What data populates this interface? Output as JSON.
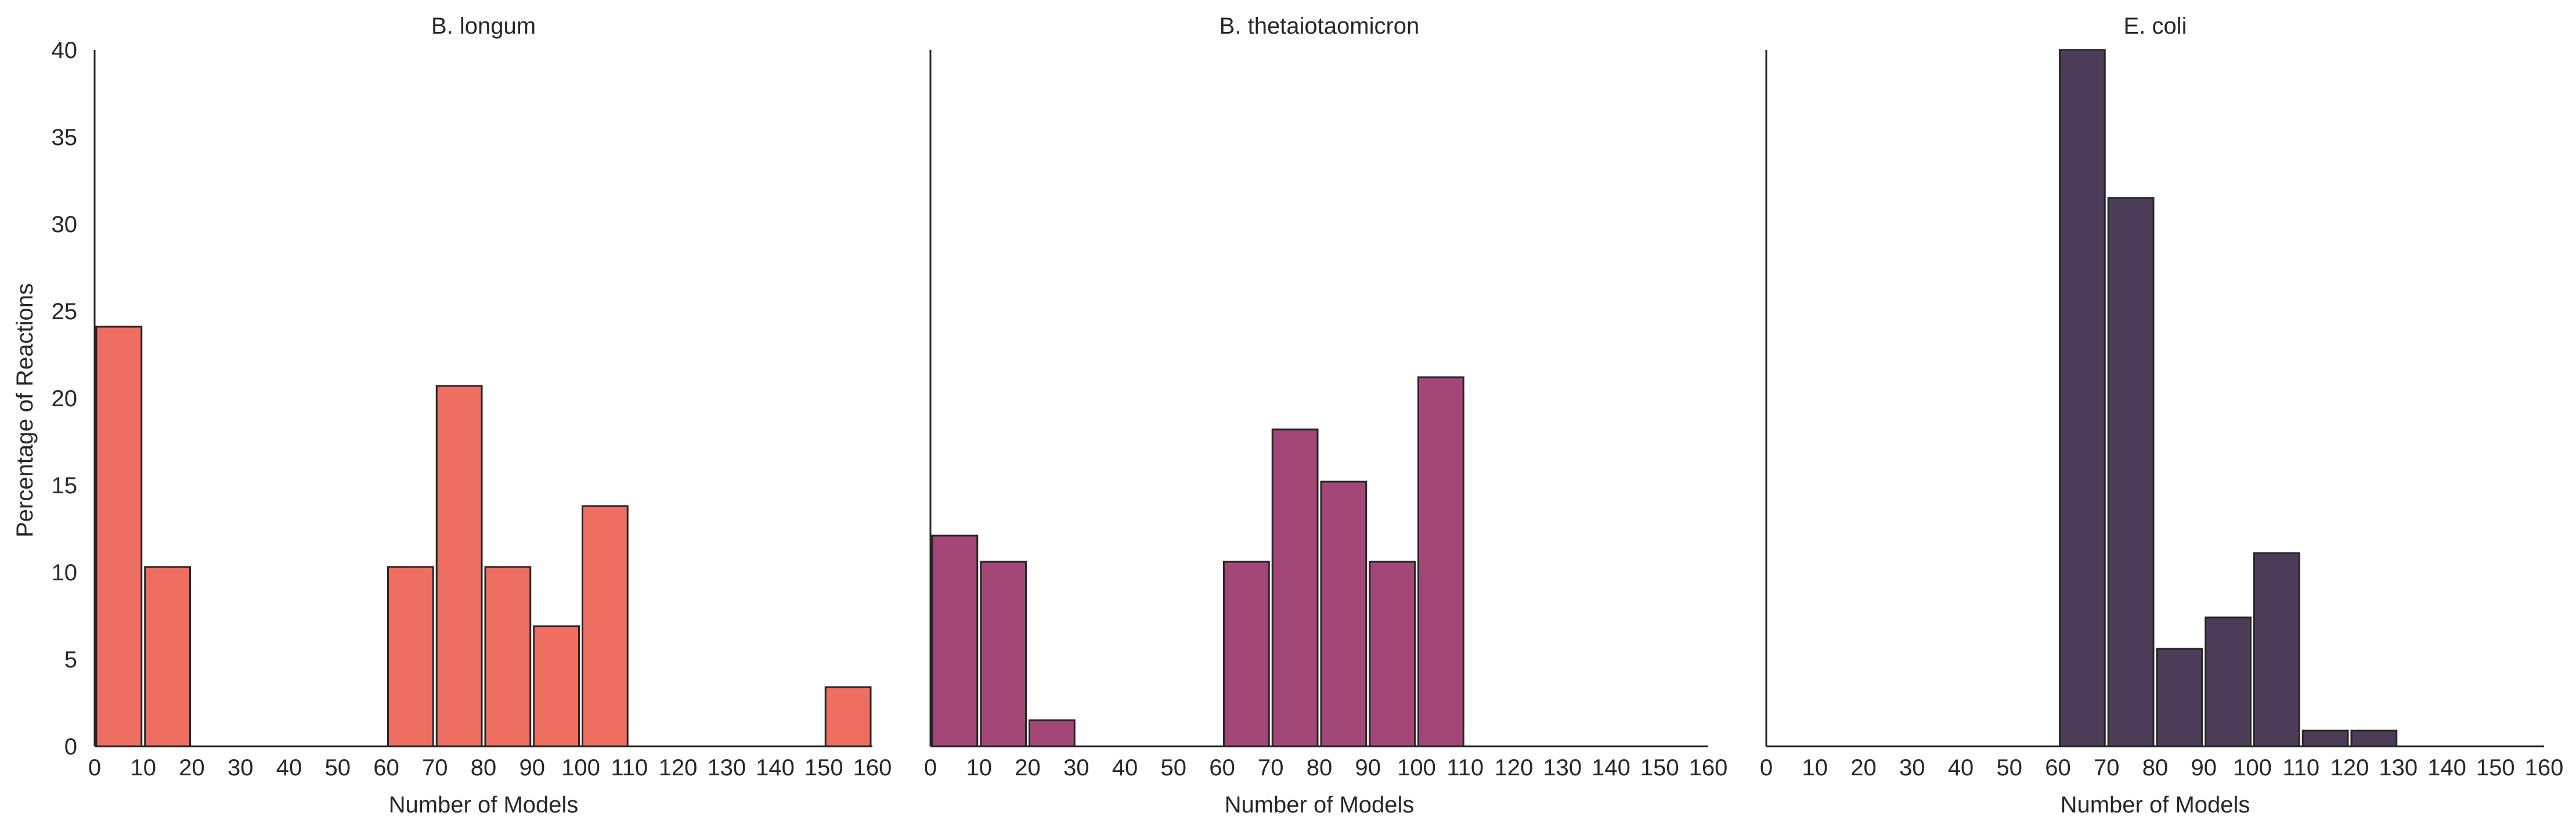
{
  "chart_data": {
    "type": "bar",
    "ylabel": "Percentage of Reactions",
    "ylim": [
      0,
      40
    ],
    "yticks": [
      "0",
      "5",
      "10",
      "15",
      "20",
      "25",
      "30",
      "35",
      "40"
    ],
    "xticks": [
      "0",
      "10",
      "20",
      "30",
      "40",
      "50",
      "60",
      "70",
      "80",
      "90",
      "100",
      "110",
      "120",
      "130",
      "140",
      "150",
      "160"
    ],
    "bin_width": 10,
    "panels": [
      {
        "title": "B. longum",
        "xlabel": "Number of Models",
        "xlim": [
          0,
          160
        ],
        "color": "#ee6f61",
        "bins": [
          {
            "x0": 0,
            "x1": 10,
            "value": 24.1
          },
          {
            "x0": 10,
            "x1": 20,
            "value": 10.3
          },
          {
            "x0": 60,
            "x1": 70,
            "value": 10.3
          },
          {
            "x0": 70,
            "x1": 80,
            "value": 20.7
          },
          {
            "x0": 80,
            "x1": 90,
            "value": 10.3
          },
          {
            "x0": 90,
            "x1": 100,
            "value": 6.9
          },
          {
            "x0": 100,
            "x1": 110,
            "value": 13.8
          },
          {
            "x0": 150,
            "x1": 160,
            "value": 3.4
          }
        ]
      },
      {
        "title": "B. thetaiotaomicron",
        "xlabel": "Number of Models",
        "xlim": [
          0,
          160
        ],
        "color": "#a34777",
        "bins": [
          {
            "x0": 0,
            "x1": 10,
            "value": 12.1
          },
          {
            "x0": 10,
            "x1": 20,
            "value": 10.6
          },
          {
            "x0": 20,
            "x1": 30,
            "value": 1.5
          },
          {
            "x0": 60,
            "x1": 70,
            "value": 10.6
          },
          {
            "x0": 70,
            "x1": 80,
            "value": 18.2
          },
          {
            "x0": 80,
            "x1": 90,
            "value": 15.2
          },
          {
            "x0": 90,
            "x1": 100,
            "value": 10.6
          },
          {
            "x0": 100,
            "x1": 110,
            "value": 21.2
          }
        ]
      },
      {
        "title": "E. coli",
        "xlabel": "Number of Models",
        "xlim": [
          0,
          160
        ],
        "color": "#4b3d57",
        "bins": [
          {
            "x0": 60,
            "x1": 70,
            "value": 40.0
          },
          {
            "x0": 70,
            "x1": 80,
            "value": 31.5
          },
          {
            "x0": 80,
            "x1": 90,
            "value": 5.6
          },
          {
            "x0": 90,
            "x1": 100,
            "value": 7.4
          },
          {
            "x0": 100,
            "x1": 110,
            "value": 11.1
          },
          {
            "x0": 110,
            "x1": 120,
            "value": 0.9
          },
          {
            "x0": 120,
            "x1": 130,
            "value": 0.9
          }
        ]
      }
    ],
    "grid": false,
    "legend": "none"
  }
}
